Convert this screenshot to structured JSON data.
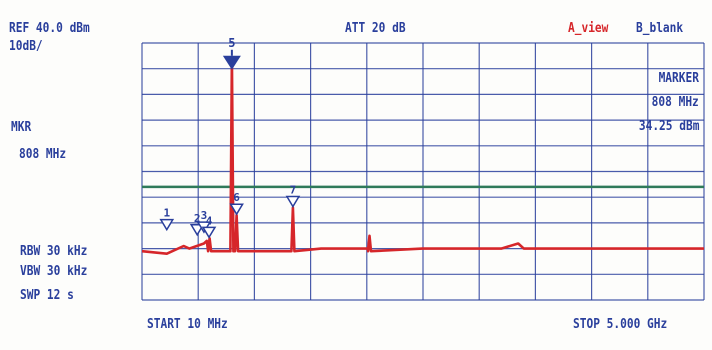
{
  "chart_data": {
    "type": "line",
    "title": "",
    "xlabel": "",
    "ylabel": "",
    "xlim": [
      10,
      5000
    ],
    "ylim": [
      -60,
      40
    ],
    "grid": true,
    "reference_level": "REF 40.0 dBm",
    "scale": "10dB/",
    "attenuation": "ATT 20 dB",
    "trace_a": "A_view",
    "trace_b": "B_blank",
    "marker_readout": {
      "title": "MARKER",
      "freq": "808 MHz",
      "level": "34.25 dBm"
    },
    "left_marker": {
      "title": "MKR",
      "freq": "808 MHz"
    },
    "rbw": "RBW 30 kHz",
    "vbw": "VBW 30 kHz",
    "sweep": "SWP 12 s",
    "start": "START 10 MHz",
    "stop": "STOP 5.000 GHz",
    "noise_floor_dbm": -41,
    "threshold_dbm": -16,
    "threshold_color": "#2f7a5a",
    "trace_color": "#d6262a",
    "grid_color": "#2a3f9c",
    "series": [
      {
        "x": [
          10,
          230,
          380,
          430,
          560,
          585,
          610,
          808,
          850,
          1350,
          1600,
          2020,
          2030,
          2500,
          3200,
          3350,
          3400,
          4000,
          5000
        ],
        "y": [
          -41,
          -42,
          -39,
          -40,
          -38,
          -37,
          -36,
          34.25,
          -27,
          -24,
          -40,
          -40,
          -35,
          -40,
          -40,
          -38,
          -40,
          -40,
          -40
        ]
      }
    ],
    "markers": [
      {
        "label": "1",
        "x": 230,
        "y": -33,
        "active": false
      },
      {
        "label": "2",
        "x": 500,
        "y": -35,
        "active": false
      },
      {
        "label": "3",
        "x": 560,
        "y": -34,
        "active": false
      },
      {
        "label": "4",
        "x": 605,
        "y": -36,
        "active": false
      },
      {
        "label": "5",
        "x": 808,
        "y": 34.25,
        "active": true
      },
      {
        "label": "6",
        "x": 850,
        "y": -27,
        "active": false
      },
      {
        "label": "7",
        "x": 1350,
        "y": -24,
        "active": false
      }
    ]
  }
}
